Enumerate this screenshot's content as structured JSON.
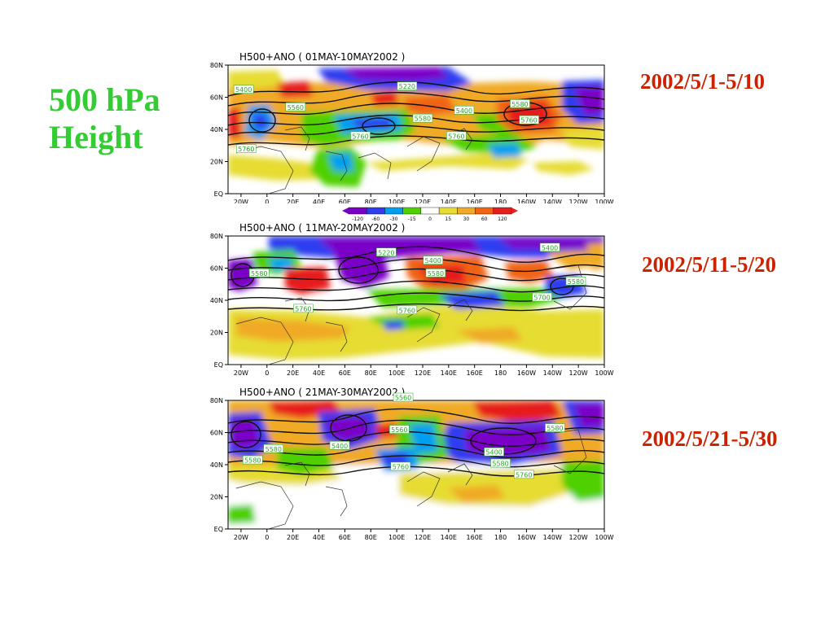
{
  "title_line1": "500 hPa",
  "title_line2": "Height",
  "lat_labels": [
    "80N",
    "60N",
    "40N",
    "20N",
    "EQ"
  ],
  "lon_labels": [
    "20W",
    "0",
    "20E",
    "40E",
    "60E",
    "80E",
    "100E",
    "120E",
    "140E",
    "160E",
    "180",
    "160W",
    "140W",
    "120W",
    "100W"
  ],
  "colorbar": {
    "ticks": [
      "-120",
      "-60",
      "-30",
      "-15",
      "0",
      "15",
      "30",
      "60",
      "120"
    ],
    "colors": [
      "#7a00c8",
      "#2f3cf0",
      "#00a0f0",
      "#50d000",
      "#ffffff",
      "#e6dc32",
      "#f0aa28",
      "#f06414",
      "#e61e1e"
    ]
  },
  "maps": [
    {
      "title": "H500+ANO (  01MAY-10MAY2002 )",
      "period_label": "2002/5/1-5/10",
      "contour_labels": [
        {
          "text": "5400",
          "lon": -18,
          "lat": 65
        },
        {
          "text": "5560",
          "lon": 22,
          "lat": 54
        },
        {
          "text": "5220",
          "lon": 108,
          "lat": 67
        },
        {
          "text": "5400",
          "lon": 152,
          "lat": 52
        },
        {
          "text": "5580",
          "lon": 120,
          "lat": 47
        },
        {
          "text": "5580",
          "lon": 195,
          "lat": 56
        },
        {
          "text": "5760",
          "lon": 202,
          "lat": 46
        },
        {
          "text": "5760",
          "lon": 72,
          "lat": 36
        },
        {
          "text": "5760",
          "lon": 146,
          "lat": 36
        },
        {
          "text": "5760",
          "lon": -16,
          "lat": 28
        }
      ]
    },
    {
      "title": "H500+ANO (  11MAY-20MAY2002 )",
      "period_label": "2002/5/11-5/20",
      "contour_labels": [
        {
          "text": "5220",
          "lon": 92,
          "lat": 70
        },
        {
          "text": "5400",
          "lon": 128,
          "lat": 65
        },
        {
          "text": "5580",
          "lon": 130,
          "lat": 57
        },
        {
          "text": "5400",
          "lon": 218,
          "lat": 73
        },
        {
          "text": "5580",
          "lon": -6,
          "lat": 57
        },
        {
          "text": "5580",
          "lon": 238,
          "lat": 52
        },
        {
          "text": "5700",
          "lon": 212,
          "lat": 42
        },
        {
          "text": "5760",
          "lon": 108,
          "lat": 34
        },
        {
          "text": "5760",
          "lon": 28,
          "lat": 35
        }
      ]
    },
    {
      "title": "H500+ANO (  21MAY-30MAY2002 )",
      "period_label": "2002/5/21-5/30",
      "contour_labels": [
        {
          "text": "5560",
          "lon": 105,
          "lat": 82
        },
        {
          "text": "5560",
          "lon": 102,
          "lat": 62
        },
        {
          "text": "5580",
          "lon": 222,
          "lat": 63
        },
        {
          "text": "5400",
          "lon": 56,
          "lat": 52
        },
        {
          "text": "5400",
          "lon": 175,
          "lat": 48
        },
        {
          "text": "5580",
          "lon": 180,
          "lat": 41
        },
        {
          "text": "5760",
          "lon": 198,
          "lat": 34
        },
        {
          "text": "5760",
          "lon": 103,
          "lat": 39
        },
        {
          "text": "5580",
          "lon": -11,
          "lat": 43
        },
        {
          "text": "5580",
          "lon": 5,
          "lat": 50
        }
      ]
    }
  ]
}
